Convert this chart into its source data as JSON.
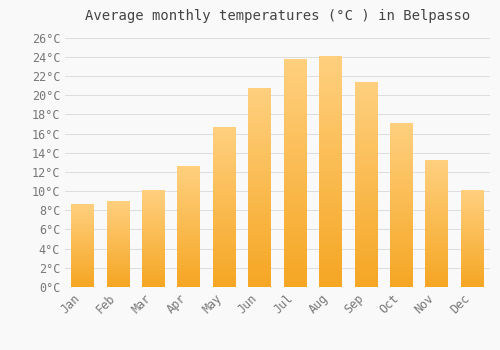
{
  "title": "Average monthly temperatures (°C ) in Belpasso",
  "months": [
    "Jan",
    "Feb",
    "Mar",
    "Apr",
    "May",
    "Jun",
    "Jul",
    "Aug",
    "Sep",
    "Oct",
    "Nov",
    "Dec"
  ],
  "values": [
    8.7,
    9.0,
    10.1,
    12.6,
    16.7,
    20.7,
    23.8,
    24.1,
    21.4,
    17.1,
    13.2,
    10.1
  ],
  "bar_color_bottom": "#F5A623",
  "bar_color_top": "#FFD080",
  "background_color": "#F9F9F9",
  "grid_color": "#DDDDDD",
  "text_color": "#777777",
  "ylim": [
    0,
    27
  ],
  "yticks": [
    0,
    2,
    4,
    6,
    8,
    10,
    12,
    14,
    16,
    18,
    20,
    22,
    24,
    26
  ],
  "title_fontsize": 10,
  "tick_fontsize": 8.5,
  "font_family": "monospace"
}
